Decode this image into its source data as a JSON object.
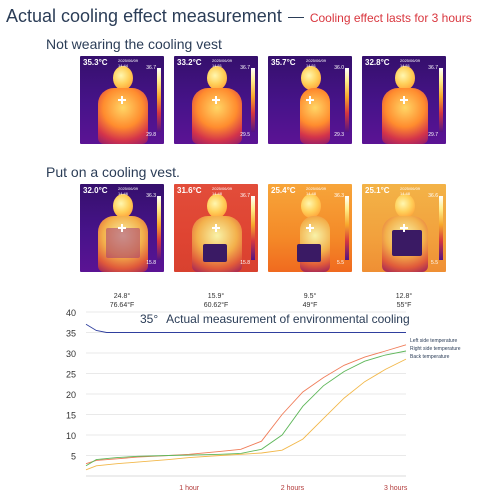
{
  "header": {
    "title": "Actual cooling effect measurement",
    "subtitle": "Cooling effect lasts for 3 hours"
  },
  "sections": {
    "without": "Not wearing the cooling vest",
    "with": "Put on a cooling vest."
  },
  "row_without": [
    {
      "temp": "35.3°C",
      "date": "2025/06/09",
      "time": "14:44",
      "max": "36.7",
      "min": "29.8",
      "view": "front"
    },
    {
      "temp": "33.2°C",
      "date": "2025/06/09",
      "time": "14:51",
      "max": "36.7",
      "min": "29.5",
      "view": "side"
    },
    {
      "temp": "35.7°C",
      "date": "2025/06/09",
      "time": "14:51",
      "max": "36.0",
      "min": "29.3",
      "view": "side"
    },
    {
      "temp": "32.8°C",
      "date": "2025/06/09",
      "time": "14:51",
      "max": "36.7",
      "min": "29.7",
      "view": "back"
    }
  ],
  "row_with": [
    {
      "temp": "32.0°C",
      "date": "2025/06/09",
      "time": "14:46",
      "max": "36.3",
      "min": "15.8",
      "view": "front"
    },
    {
      "temp": "31.6°C",
      "date": "2025/06/09",
      "time": "14:48",
      "max": "36.7",
      "min": "15.8",
      "view": "side"
    },
    {
      "temp": "25.4°C",
      "date": "2025/06/09",
      "time": "14:48",
      "max": "36.3",
      "min": "5.5",
      "view": "side"
    },
    {
      "temp": "25.1°C",
      "date": "2025/06/09",
      "time": "14:48",
      "max": "36.6",
      "min": "5.5",
      "view": "back"
    }
  ],
  "readings": [
    {
      "deg": "24.8°",
      "f": "76.64°F"
    },
    {
      "deg": "15.9°",
      "f": "60.62°F"
    },
    {
      "deg": "9.5°",
      "f": "49°F"
    },
    {
      "deg": "12.8°",
      "f": "55°F"
    }
  ],
  "colors": {
    "title": "#2b3d57",
    "subtitle": "#d9363e",
    "env_line": "#2f3f9e",
    "left_line": "#f07d5a",
    "right_line": "#5fb75a",
    "back_line": "#f2b84b",
    "x_tick": "#b23a3a"
  },
  "chart_data": {
    "type": "line",
    "title_value": "35°",
    "title": "Actual measurement of environmental cooling",
    "ylim": [
      0,
      40
    ],
    "yticks": [
      5,
      10,
      15,
      20,
      25,
      30,
      35,
      40
    ],
    "xlim": [
      0,
      3.1
    ],
    "xticks": [
      {
        "x": 1,
        "label": "1 hour"
      },
      {
        "x": 2,
        "label": "2 hours"
      },
      {
        "x": 3,
        "label": "3 hours"
      }
    ],
    "series": [
      {
        "name": "Environment",
        "color_key": "env_line",
        "x": [
          0,
          0.1,
          0.2,
          0.5,
          1,
          1.5,
          2,
          2.5,
          3,
          3.1
        ],
        "y": [
          37,
          35.5,
          35,
          35,
          35,
          35,
          35,
          35,
          35,
          35
        ]
      },
      {
        "name": "Left side temperature",
        "color_key": "left_line",
        "x": [
          0,
          0.1,
          0.3,
          0.5,
          0.8,
          1,
          1.3,
          1.5,
          1.7,
          1.9,
          2.1,
          2.3,
          2.5,
          2.7,
          2.9,
          3.1
        ],
        "y": [
          3,
          3.8,
          4.2,
          4.6,
          5,
          5.3,
          6,
          6.5,
          8.5,
          15,
          20.5,
          24,
          27,
          29,
          30.5,
          32
        ]
      },
      {
        "name": "Right side temperature",
        "color_key": "right_line",
        "x": [
          0,
          0.1,
          0.3,
          0.5,
          0.8,
          1,
          1.3,
          1.5,
          1.7,
          1.9,
          2.1,
          2.3,
          2.5,
          2.7,
          2.9,
          3.1
        ],
        "y": [
          2.5,
          4,
          4.5,
          4.8,
          5,
          5.1,
          5.3,
          5.5,
          6.5,
          10,
          17,
          22,
          25.5,
          28,
          29.5,
          30.5
        ]
      },
      {
        "name": "Back temperature",
        "color_key": "back_line",
        "x": [
          0,
          0.1,
          0.3,
          0.5,
          0.8,
          1,
          1.3,
          1.5,
          1.7,
          1.9,
          2.1,
          2.3,
          2.5,
          2.7,
          2.9,
          3.1
        ],
        "y": [
          1.5,
          2.5,
          3,
          3.4,
          4,
          4.5,
          5,
          5.3,
          5.6,
          6.3,
          9,
          14,
          19,
          23,
          26,
          28.5
        ]
      }
    ],
    "legend_position": "right"
  }
}
